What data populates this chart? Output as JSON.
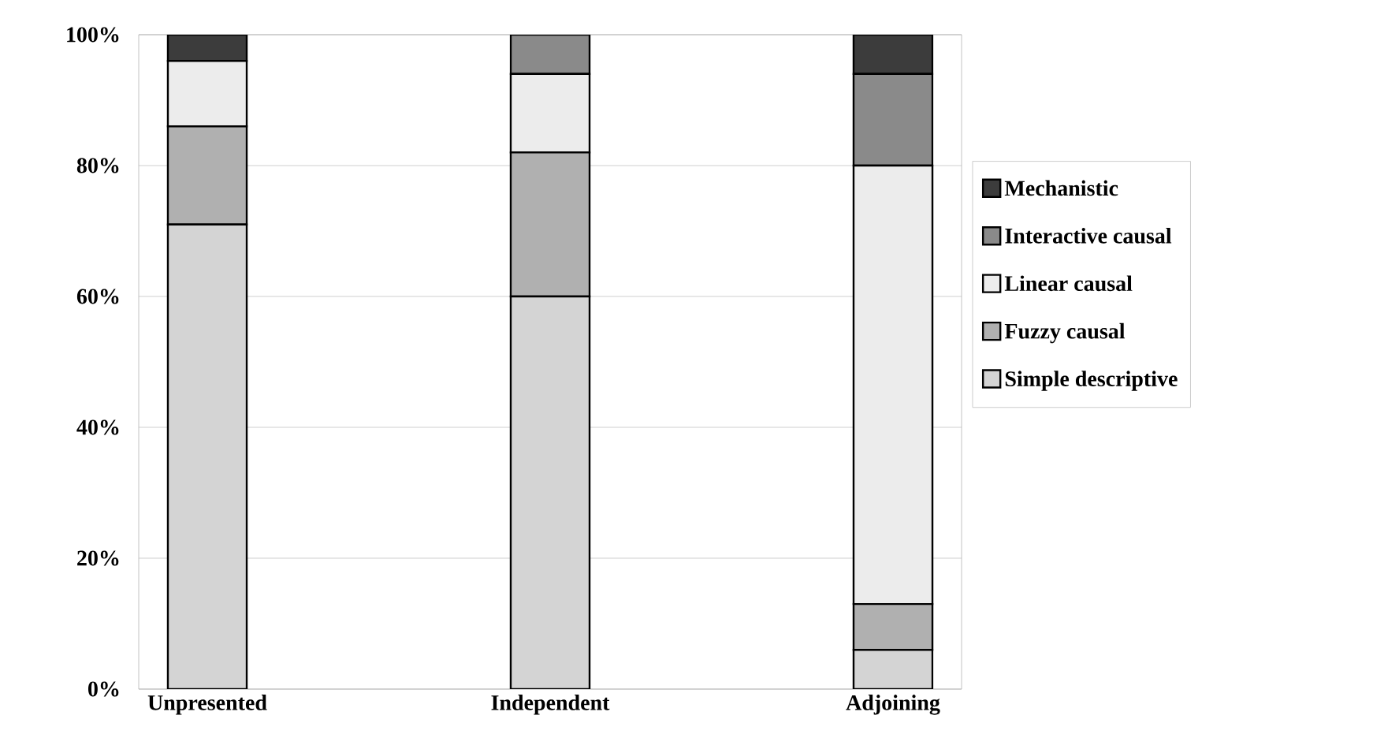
{
  "chart_data": {
    "type": "bar",
    "stacked": true,
    "categories": [
      "Unpresented",
      "Independent",
      "Adjoining"
    ],
    "series": [
      {
        "name": "Simple descriptive",
        "color": "#d4d4d4",
        "values": [
          71,
          60,
          6
        ]
      },
      {
        "name": "Fuzzy causal",
        "color": "#b0b0b0",
        "values": [
          15,
          22,
          7
        ]
      },
      {
        "name": "Linear causal",
        "color": "#ececec",
        "values": [
          10,
          12,
          67
        ]
      },
      {
        "name": "Interactive causal",
        "color": "#8a8a8a",
        "values": [
          0,
          6,
          14
        ]
      },
      {
        "name": "Mechanistic",
        "color": "#3c3c3c",
        "values": [
          4,
          0,
          6
        ]
      }
    ],
    "ylim": [
      0,
      100
    ],
    "yticks": [
      {
        "value": 0,
        "label": "0%"
      },
      {
        "value": 20,
        "label": "20%"
      },
      {
        "value": 40,
        "label": "40%"
      },
      {
        "value": 60,
        "label": "60%"
      },
      {
        "value": 80,
        "label": "80%"
      },
      {
        "value": 100,
        "label": "100%"
      }
    ],
    "grid": "y",
    "legend": "right"
  }
}
